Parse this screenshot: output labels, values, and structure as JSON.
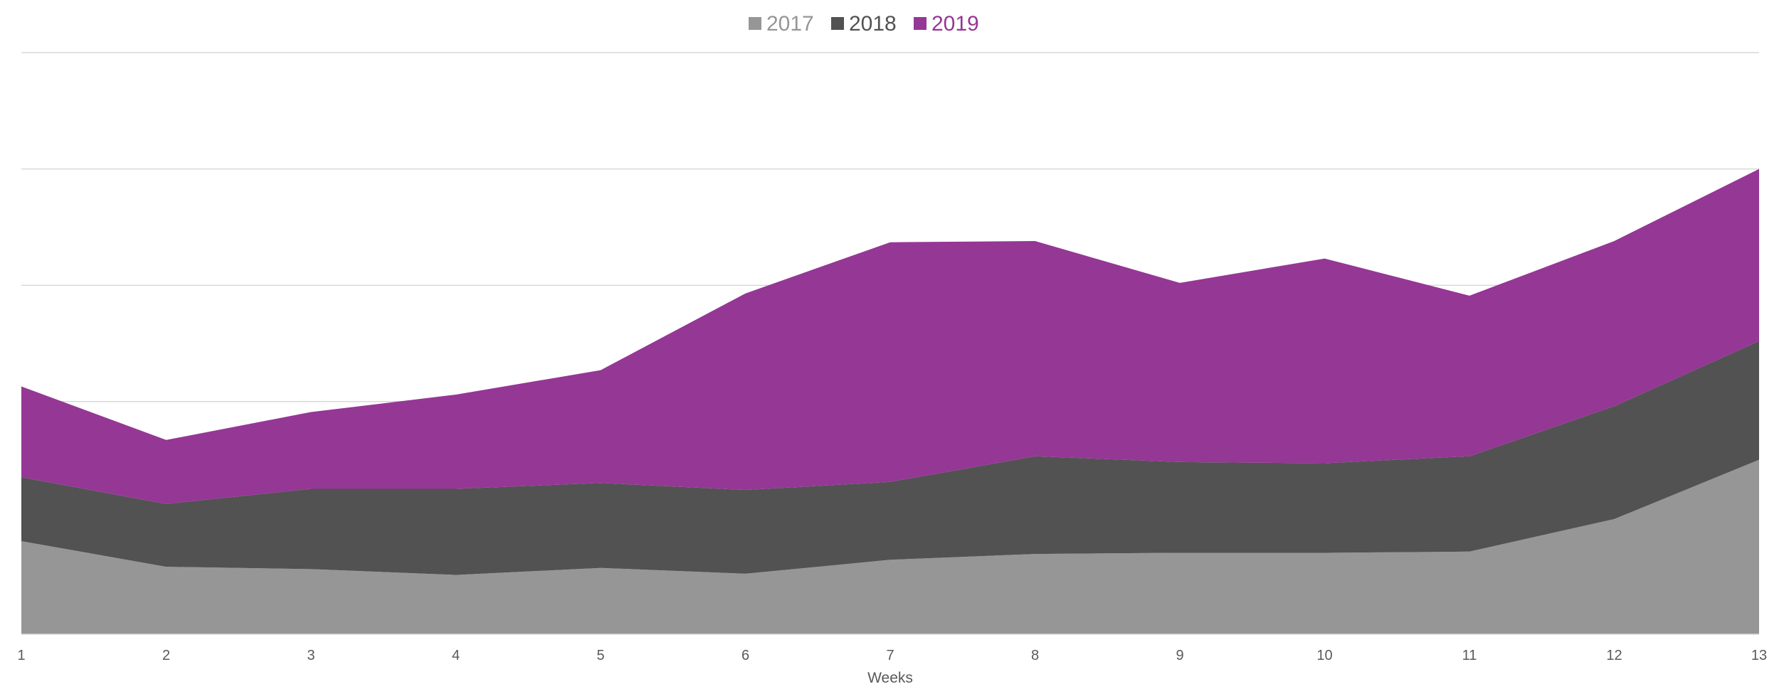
{
  "chart_data": {
    "type": "area",
    "stacked": true,
    "title": "",
    "xlabel": "Weeks",
    "ylabel": "",
    "x": [
      1,
      2,
      3,
      4,
      5,
      6,
      7,
      8,
      9,
      10,
      11,
      12,
      13
    ],
    "xlim": [
      1,
      13
    ],
    "ylim": [
      0,
      5
    ],
    "y_tick_labels_shown": false,
    "gridlines": true,
    "legend_position": "top-center",
    "series": [
      {
        "name": "2017",
        "color": "#969696",
        "values": [
          0.8,
          0.58,
          0.56,
          0.51,
          0.57,
          0.52,
          0.64,
          0.69,
          0.7,
          0.7,
          0.71,
          0.99,
          1.5
        ]
      },
      {
        "name": "2018",
        "color": "#525252",
        "values": [
          0.55,
          0.54,
          0.69,
          0.74,
          0.73,
          0.72,
          0.67,
          0.84,
          0.78,
          0.77,
          0.82,
          0.97,
          1.02
        ]
      },
      {
        "name": "2019",
        "color": "#953795",
        "values": [
          0.78,
          0.55,
          0.66,
          0.81,
          0.97,
          1.69,
          2.06,
          1.85,
          1.54,
          1.76,
          1.38,
          1.42,
          1.48
        ]
      }
    ]
  }
}
